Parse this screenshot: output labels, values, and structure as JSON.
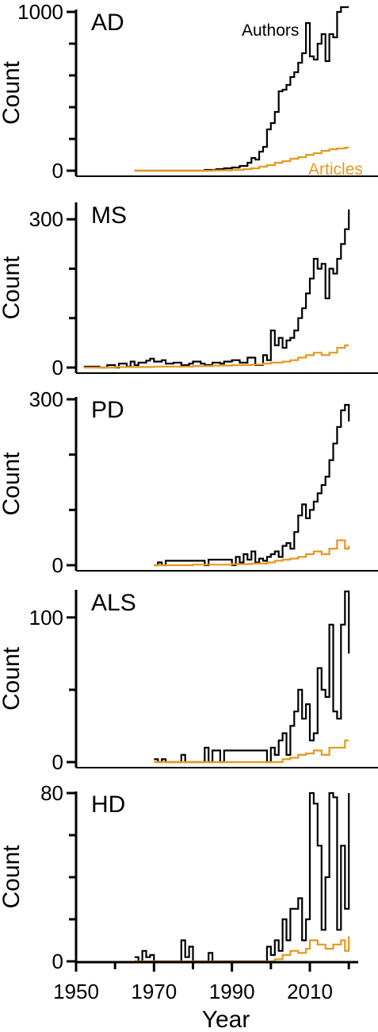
{
  "figure": {
    "xlabel": "Year",
    "x_ticks": [
      1950,
      1970,
      1990,
      2010
    ],
    "colors": {
      "authors": "#000000",
      "articles": "#e8961e"
    }
  },
  "chart_data": [
    {
      "type": "line",
      "label": "AD",
      "ylabel": "Count",
      "ylim": [
        0,
        1000
      ],
      "y_ticks_labeled": [
        0,
        1000
      ],
      "y_ticks_minor": [
        200,
        400,
        600,
        800
      ],
      "xlim": [
        1950,
        2022
      ],
      "series_labels": {
        "authors": "Authors",
        "articles": "Articles"
      },
      "series": [
        {
          "name": "Authors",
          "color": "#000000",
          "x": [
            1965,
            1980,
            1983,
            1986,
            1988,
            1990,
            1992,
            1994,
            1995,
            1996,
            1997,
            1998,
            1999,
            2000,
            2001,
            2002,
            2003,
            2004,
            2005,
            2006,
            2007,
            2008,
            2009,
            2010,
            2011,
            2012,
            2013,
            2014,
            2015,
            2016,
            2017,
            2018,
            2019,
            2020
          ],
          "y": [
            0,
            0,
            5,
            10,
            15,
            20,
            30,
            50,
            80,
            70,
            120,
            150,
            260,
            300,
            370,
            500,
            510,
            540,
            590,
            620,
            680,
            740,
            930,
            720,
            700,
            800,
            860,
            690,
            860,
            840,
            1000,
            1030,
            1030,
            1030
          ]
        },
        {
          "name": "Articles",
          "color": "#e8961e",
          "x": [
            1965,
            1980,
            1985,
            1990,
            1993,
            1995,
            1997,
            1999,
            2001,
            2003,
            2005,
            2007,
            2009,
            2011,
            2013,
            2015,
            2017,
            2019,
            2020
          ],
          "y": [
            0,
            0,
            2,
            5,
            10,
            15,
            25,
            35,
            50,
            60,
            75,
            85,
            100,
            110,
            125,
            135,
            140,
            145,
            145
          ]
        }
      ]
    },
    {
      "type": "line",
      "label": "MS",
      "ylabel": "Count",
      "ylim": [
        0,
        310
      ],
      "y_ticks_labeled": [
        0,
        300
      ],
      "y_ticks_minor": [
        100,
        200
      ],
      "xlim": [
        1950,
        2022
      ],
      "series": [
        {
          "name": "Authors",
          "color": "#000000",
          "x": [
            1952,
            1956,
            1958,
            1960,
            1961,
            1963,
            1964,
            1965,
            1966,
            1968,
            1969,
            1970,
            1972,
            1973,
            1975,
            1977,
            1979,
            1980,
            1982,
            1983,
            1985,
            1987,
            1988,
            1990,
            1992,
            1994,
            1996,
            1998,
            1999,
            2000,
            2001,
            2002,
            2003,
            2004,
            2005,
            2006,
            2007,
            2008,
            2009,
            2010,
            2011,
            2012,
            2013,
            2014,
            2015,
            2016,
            2017,
            2018,
            2019,
            2020
          ],
          "y": [
            2,
            0,
            5,
            0,
            8,
            2,
            12,
            5,
            10,
            14,
            18,
            12,
            15,
            8,
            10,
            5,
            8,
            12,
            8,
            5,
            10,
            8,
            12,
            15,
            10,
            20,
            5,
            25,
            15,
            75,
            45,
            60,
            40,
            55,
            60,
            75,
            100,
            120,
            150,
            180,
            220,
            200,
            210,
            140,
            200,
            190,
            220,
            250,
            280,
            320
          ]
        },
        {
          "name": "Articles",
          "color": "#e8961e",
          "x": [
            1952,
            1960,
            1970,
            1980,
            1985,
            1990,
            1995,
            1998,
            2000,
            2003,
            2005,
            2007,
            2009,
            2011,
            2013,
            2015,
            2017,
            2019,
            2020
          ],
          "y": [
            0,
            1,
            2,
            3,
            4,
            5,
            6,
            8,
            10,
            12,
            15,
            20,
            25,
            30,
            25,
            30,
            40,
            45,
            45
          ]
        }
      ]
    },
    {
      "type": "line",
      "label": "PD",
      "ylabel": "Count",
      "ylim": [
        0,
        300
      ],
      "y_ticks_labeled": [
        0,
        300
      ],
      "y_ticks_minor": [
        100,
        200
      ],
      "xlim": [
        1950,
        2022
      ],
      "series": [
        {
          "name": "Authors",
          "color": "#000000",
          "x": [
            1970,
            1971,
            1972,
            1973,
            1983,
            1984,
            1990,
            1991,
            1992,
            1993,
            1994,
            1995,
            1996,
            1997,
            1998,
            1999,
            2000,
            2001,
            2002,
            2003,
            2004,
            2005,
            2006,
            2007,
            2008,
            2009,
            2010,
            2011,
            2012,
            2013,
            2014,
            2015,
            2016,
            2017,
            2018,
            2019,
            2020
          ],
          "y": [
            0,
            5,
            0,
            8,
            0,
            10,
            0,
            15,
            5,
            20,
            10,
            25,
            5,
            12,
            8,
            15,
            20,
            25,
            15,
            35,
            40,
            30,
            60,
            90,
            110,
            85,
            100,
            115,
            130,
            145,
            160,
            190,
            220,
            250,
            280,
            290,
            260
          ]
        },
        {
          "name": "Articles",
          "color": "#e8961e",
          "x": [
            1970,
            1980,
            1990,
            1995,
            1999,
            2001,
            2003,
            2005,
            2007,
            2009,
            2011,
            2013,
            2015,
            2017,
            2019,
            2020
          ],
          "y": [
            0,
            1,
            2,
            3,
            5,
            8,
            10,
            12,
            15,
            20,
            25,
            20,
            30,
            45,
            30,
            35
          ]
        }
      ]
    },
    {
      "type": "line",
      "label": "ALS",
      "ylabel": "Count",
      "ylim": [
        0,
        118
      ],
      "y_ticks_labeled": [
        0,
        100
      ],
      "y_ticks_minor": [
        50
      ],
      "xlim": [
        1950,
        2022
      ],
      "series": [
        {
          "name": "Authors",
          "color": "#000000",
          "x": [
            1970,
            1971,
            1972,
            1973,
            1977,
            1978,
            1983,
            1984,
            1985,
            1987,
            1988,
            1999,
            2000,
            2001,
            2002,
            2003,
            2004,
            2005,
            2006,
            2007,
            2008,
            2009,
            2010,
            2011,
            2012,
            2013,
            2014,
            2015,
            2016,
            2017,
            2018,
            2019,
            2020
          ],
          "y": [
            2,
            0,
            2,
            0,
            5,
            0,
            10,
            0,
            8,
            0,
            8,
            0,
            10,
            5,
            15,
            20,
            5,
            25,
            35,
            50,
            30,
            40,
            15,
            20,
            65,
            50,
            45,
            95,
            35,
            30,
            95,
            118,
            75
          ]
        },
        {
          "name": "Articles",
          "color": "#e8961e",
          "x": [
            1970,
            1985,
            2000,
            2003,
            2005,
            2007,
            2009,
            2011,
            2013,
            2015,
            2017,
            2019,
            2020
          ],
          "y": [
            0,
            0,
            0,
            2,
            3,
            5,
            6,
            8,
            5,
            10,
            10,
            15,
            15
          ]
        }
      ]
    },
    {
      "type": "line",
      "label": "HD",
      "ylabel": "Count",
      "ylim": [
        0,
        80
      ],
      "y_ticks_labeled": [
        0,
        80
      ],
      "y_ticks_minor": [
        20,
        40,
        60
      ],
      "xlim": [
        1950,
        2022
      ],
      "series": [
        {
          "name": "Authors",
          "color": "#000000",
          "x": [
            1965,
            1966,
            1967,
            1968,
            1969,
            1970,
            1977,
            1978,
            1979,
            1980,
            1984,
            1985,
            1999,
            2000,
            2001,
            2002,
            2003,
            2004,
            2005,
            2006,
            2007,
            2008,
            2009,
            2010,
            2011,
            2012,
            2013,
            2014,
            2015,
            2016,
            2017,
            2018,
            2019,
            2020
          ],
          "y": [
            2,
            0,
            5,
            2,
            3,
            0,
            10,
            2,
            7,
            0,
            4,
            0,
            7,
            3,
            10,
            5,
            20,
            10,
            25,
            25,
            30,
            10,
            20,
            80,
            75,
            55,
            15,
            40,
            80,
            78,
            15,
            55,
            25,
            80
          ]
        },
        {
          "name": "Articles",
          "color": "#e8961e",
          "x": [
            1965,
            1980,
            1999,
            2001,
            2003,
            2005,
            2007,
            2009,
            2010,
            2012,
            2014,
            2016,
            2018,
            2019,
            2020
          ],
          "y": [
            0,
            0,
            0,
            1,
            3,
            5,
            4,
            6,
            10,
            8,
            6,
            8,
            10,
            5,
            12
          ]
        }
      ]
    }
  ]
}
